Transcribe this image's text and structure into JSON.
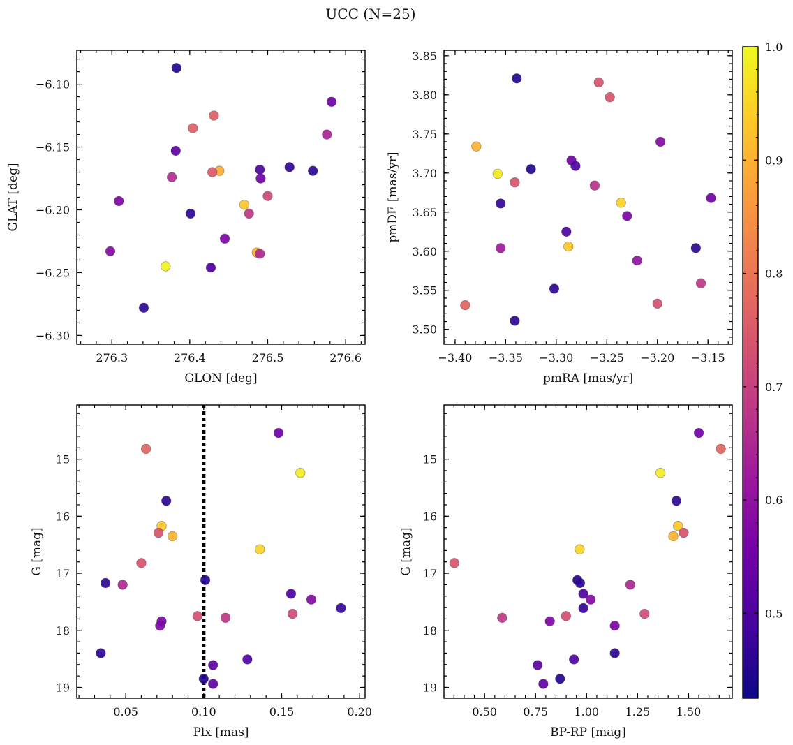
{
  "title": "UCC (N=25)",
  "chart_data": [
    {
      "type": "scatter",
      "panel": "top-left",
      "xlabel": "GLON [deg]",
      "ylabel": "GLAT [deg]",
      "xlim": [
        276.255,
        276.625
      ],
      "ylim": [
        -6.307,
        -6.073
      ],
      "x_inverted": false,
      "y_inverted": false,
      "x_ticks": [
        276.3,
        276.4,
        276.5,
        276.6
      ],
      "y_ticks": [
        -6.3,
        -6.25,
        -6.2,
        -6.15,
        -6.1
      ],
      "x_tick_labels": [
        "276.3",
        "276.4",
        "276.5",
        "276.6"
      ],
      "y_tick_labels": [
        "−6.30",
        "−6.25",
        "−6.20",
        "−6.15",
        "−6.10"
      ],
      "points": [
        {
          "x": 276.383,
          "y": -6.087,
          "c": 0.45
        },
        {
          "x": 276.582,
          "y": -6.114,
          "c": 0.55
        },
        {
          "x": 276.431,
          "y": -6.125,
          "c": 0.76
        },
        {
          "x": 276.404,
          "y": -6.135,
          "c": 0.76
        },
        {
          "x": 276.576,
          "y": -6.14,
          "c": 0.64
        },
        {
          "x": 276.382,
          "y": -6.153,
          "c": 0.53
        },
        {
          "x": 276.528,
          "y": -6.166,
          "c": 0.46
        },
        {
          "x": 276.558,
          "y": -6.169,
          "c": 0.46
        },
        {
          "x": 276.49,
          "y": -6.168,
          "c": 0.5
        },
        {
          "x": 276.438,
          "y": -6.169,
          "c": 0.89
        },
        {
          "x": 276.429,
          "y": -6.17,
          "c": 0.75
        },
        {
          "x": 276.377,
          "y": -6.174,
          "c": 0.66
        },
        {
          "x": 276.491,
          "y": -6.175,
          "c": 0.55
        },
        {
          "x": 276.5,
          "y": -6.189,
          "c": 0.72
        },
        {
          "x": 276.309,
          "y": -6.193,
          "c": 0.57
        },
        {
          "x": 276.47,
          "y": -6.196,
          "c": 0.93
        },
        {
          "x": 276.401,
          "y": -6.203,
          "c": 0.46
        },
        {
          "x": 276.476,
          "y": -6.203,
          "c": 0.68
        },
        {
          "x": 276.445,
          "y": -6.223,
          "c": 0.57
        },
        {
          "x": 276.298,
          "y": -6.233,
          "c": 0.58
        },
        {
          "x": 276.486,
          "y": -6.234,
          "c": 0.9
        },
        {
          "x": 276.49,
          "y": -6.235,
          "c": 0.65
        },
        {
          "x": 276.369,
          "y": -6.245,
          "c": 0.99
        },
        {
          "x": 276.427,
          "y": -6.246,
          "c": 0.5
        },
        {
          "x": 276.341,
          "y": -6.278,
          "c": 0.46
        }
      ]
    },
    {
      "type": "scatter",
      "panel": "top-right",
      "xlabel": "pmRA [mas/yr]",
      "ylabel": "pmDE [mas/yr]",
      "xlim": [
        -3.411,
        -3.126
      ],
      "ylim": [
        3.481,
        3.857
      ],
      "x_inverted": false,
      "y_inverted": false,
      "x_ticks": [
        -3.4,
        -3.35,
        -3.3,
        -3.25,
        -3.2,
        -3.15
      ],
      "y_ticks": [
        3.5,
        3.55,
        3.6,
        3.65,
        3.7,
        3.75,
        3.8,
        3.85
      ],
      "x_tick_labels": [
        "−3.40",
        "−3.35",
        "−3.30",
        "−3.25",
        "−3.20",
        "−3.15"
      ],
      "y_tick_labels": [
        "3.50",
        "3.55",
        "3.60",
        "3.65",
        "3.70",
        "3.75",
        "3.80",
        "3.85"
      ],
      "points": [
        {
          "x": -3.339,
          "y": 3.821,
          "c": 0.45
        },
        {
          "x": -3.258,
          "y": 3.816,
          "c": 0.74
        },
        {
          "x": -3.247,
          "y": 3.797,
          "c": 0.74
        },
        {
          "x": -3.197,
          "y": 3.74,
          "c": 0.58
        },
        {
          "x": -3.379,
          "y": 3.734,
          "c": 0.9
        },
        {
          "x": -3.285,
          "y": 3.716,
          "c": 0.55
        },
        {
          "x": -3.281,
          "y": 3.709,
          "c": 0.5
        },
        {
          "x": -3.325,
          "y": 3.705,
          "c": 0.45
        },
        {
          "x": -3.358,
          "y": 3.699,
          "c": 0.98
        },
        {
          "x": -3.341,
          "y": 3.688,
          "c": 0.74
        },
        {
          "x": -3.262,
          "y": 3.684,
          "c": 0.67
        },
        {
          "x": -3.147,
          "y": 3.668,
          "c": 0.55
        },
        {
          "x": -3.236,
          "y": 3.662,
          "c": 0.95
        },
        {
          "x": -3.355,
          "y": 3.661,
          "c": 0.47
        },
        {
          "x": -3.23,
          "y": 3.645,
          "c": 0.57
        },
        {
          "x": -3.29,
          "y": 3.625,
          "c": 0.5
        },
        {
          "x": -3.288,
          "y": 3.606,
          "c": 0.93
        },
        {
          "x": -3.355,
          "y": 3.604,
          "c": 0.62
        },
        {
          "x": -3.162,
          "y": 3.604,
          "c": 0.46
        },
        {
          "x": -3.22,
          "y": 3.588,
          "c": 0.6
        },
        {
          "x": -3.157,
          "y": 3.559,
          "c": 0.68
        },
        {
          "x": -3.302,
          "y": 3.552,
          "c": 0.46
        },
        {
          "x": -3.2,
          "y": 3.533,
          "c": 0.73
        },
        {
          "x": -3.39,
          "y": 3.531,
          "c": 0.77
        },
        {
          "x": -3.341,
          "y": 3.511,
          "c": 0.46
        }
      ]
    },
    {
      "type": "scatter",
      "panel": "bottom-left",
      "xlabel": "Plx [mas]",
      "ylabel": "G [mag]",
      "xlim": [
        0.0186,
        0.2035
      ],
      "ylim": [
        19.19,
        14.05
      ],
      "x_inverted": false,
      "y_inverted": true,
      "x_ticks": [
        0.05,
        0.1,
        0.15,
        0.2
      ],
      "y_ticks": [
        15,
        16,
        17,
        18,
        19
      ],
      "x_tick_labels": [
        "0.05",
        "0.10",
        "0.15",
        "0.20"
      ],
      "y_tick_labels": [
        "15",
        "16",
        "17",
        "18",
        "19"
      ],
      "vline": {
        "x": 0.1,
        "style": "dotted",
        "color": "#000000"
      },
      "points": [
        {
          "x": 0.148,
          "y": 14.54,
          "c": 0.55
        },
        {
          "x": 0.063,
          "y": 14.82,
          "c": 0.77
        },
        {
          "x": 0.162,
          "y": 15.24,
          "c": 0.98
        },
        {
          "x": 0.076,
          "y": 15.73,
          "c": 0.46
        },
        {
          "x": 0.073,
          "y": 16.17,
          "c": 0.93
        },
        {
          "x": 0.071,
          "y": 16.29,
          "c": 0.74
        },
        {
          "x": 0.08,
          "y": 16.35,
          "c": 0.9
        },
        {
          "x": 0.136,
          "y": 16.58,
          "c": 0.95
        },
        {
          "x": 0.06,
          "y": 16.82,
          "c": 0.74
        },
        {
          "x": 0.101,
          "y": 17.12,
          "c": 0.45
        },
        {
          "x": 0.037,
          "y": 17.17,
          "c": 0.46
        },
        {
          "x": 0.048,
          "y": 17.2,
          "c": 0.65
        },
        {
          "x": 0.156,
          "y": 17.36,
          "c": 0.5
        },
        {
          "x": 0.169,
          "y": 17.46,
          "c": 0.58
        },
        {
          "x": 0.188,
          "y": 17.61,
          "c": 0.47
        },
        {
          "x": 0.157,
          "y": 17.71,
          "c": 0.72
        },
        {
          "x": 0.096,
          "y": 17.75,
          "c": 0.73
        },
        {
          "x": 0.114,
          "y": 17.78,
          "c": 0.68
        },
        {
          "x": 0.073,
          "y": 17.84,
          "c": 0.57
        },
        {
          "x": 0.072,
          "y": 17.92,
          "c": 0.57
        },
        {
          "x": 0.034,
          "y": 18.4,
          "c": 0.46
        },
        {
          "x": 0.128,
          "y": 18.51,
          "c": 0.5
        },
        {
          "x": 0.106,
          "y": 18.61,
          "c": 0.52
        },
        {
          "x": 0.1,
          "y": 18.85,
          "c": 0.45
        },
        {
          "x": 0.106,
          "y": 18.94,
          "c": 0.53
        }
      ]
    },
    {
      "type": "scatter",
      "panel": "bottom-right",
      "xlabel": "BP-RP [mag]",
      "ylabel": "G [mag]",
      "xlim": [
        0.301,
        1.714
      ],
      "ylim": [
        19.19,
        14.05
      ],
      "x_inverted": false,
      "y_inverted": true,
      "x_ticks": [
        0.5,
        0.75,
        1.0,
        1.25,
        1.5
      ],
      "y_ticks": [
        15,
        16,
        17,
        18,
        19
      ],
      "x_tick_labels": [
        "0.50",
        "0.75",
        "1.00",
        "1.25",
        "1.50"
      ],
      "y_tick_labels": [
        "15",
        "16",
        "17",
        "18",
        "19"
      ],
      "points": [
        {
          "x": 1.55,
          "y": 14.54,
          "c": 0.55
        },
        {
          "x": 1.658,
          "y": 14.82,
          "c": 0.77
        },
        {
          "x": 1.362,
          "y": 15.24,
          "c": 0.98
        },
        {
          "x": 1.44,
          "y": 15.73,
          "c": 0.46
        },
        {
          "x": 1.448,
          "y": 16.17,
          "c": 0.93
        },
        {
          "x": 1.476,
          "y": 16.29,
          "c": 0.74
        },
        {
          "x": 1.425,
          "y": 16.35,
          "c": 0.9
        },
        {
          "x": 0.966,
          "y": 16.58,
          "c": 0.95
        },
        {
          "x": 0.352,
          "y": 16.82,
          "c": 0.74
        },
        {
          "x": 0.955,
          "y": 17.12,
          "c": 0.45
        },
        {
          "x": 0.968,
          "y": 17.17,
          "c": 0.46
        },
        {
          "x": 1.214,
          "y": 17.2,
          "c": 0.65
        },
        {
          "x": 0.984,
          "y": 17.36,
          "c": 0.5
        },
        {
          "x": 1.02,
          "y": 17.46,
          "c": 0.58
        },
        {
          "x": 0.984,
          "y": 17.61,
          "c": 0.47
        },
        {
          "x": 1.284,
          "y": 17.71,
          "c": 0.72
        },
        {
          "x": 0.899,
          "y": 17.75,
          "c": 0.73
        },
        {
          "x": 0.586,
          "y": 17.78,
          "c": 0.68
        },
        {
          "x": 0.82,
          "y": 17.84,
          "c": 0.57
        },
        {
          "x": 1.138,
          "y": 17.92,
          "c": 0.57
        },
        {
          "x": 1.138,
          "y": 18.4,
          "c": 0.46
        },
        {
          "x": 0.938,
          "y": 18.51,
          "c": 0.5
        },
        {
          "x": 0.76,
          "y": 18.61,
          "c": 0.52
        },
        {
          "x": 0.87,
          "y": 18.85,
          "c": 0.45
        },
        {
          "x": 0.788,
          "y": 18.94,
          "c": 0.53
        }
      ]
    }
  ],
  "colorbar": {
    "colormap": "plasma",
    "range": [
      0.425,
      1.0
    ],
    "ticks": [
      0.5,
      0.6,
      0.7,
      0.8,
      0.9,
      1.0
    ],
    "tick_labels": [
      "0.5",
      "0.6",
      "0.7",
      "0.8",
      "0.9",
      "1.0"
    ],
    "colors": [
      "#0d0887",
      "#46039f",
      "#7201a8",
      "#9c179e",
      "#bd3786",
      "#d8576b",
      "#ed7953",
      "#fb9f3a",
      "#fdca26",
      "#f0f921"
    ]
  }
}
